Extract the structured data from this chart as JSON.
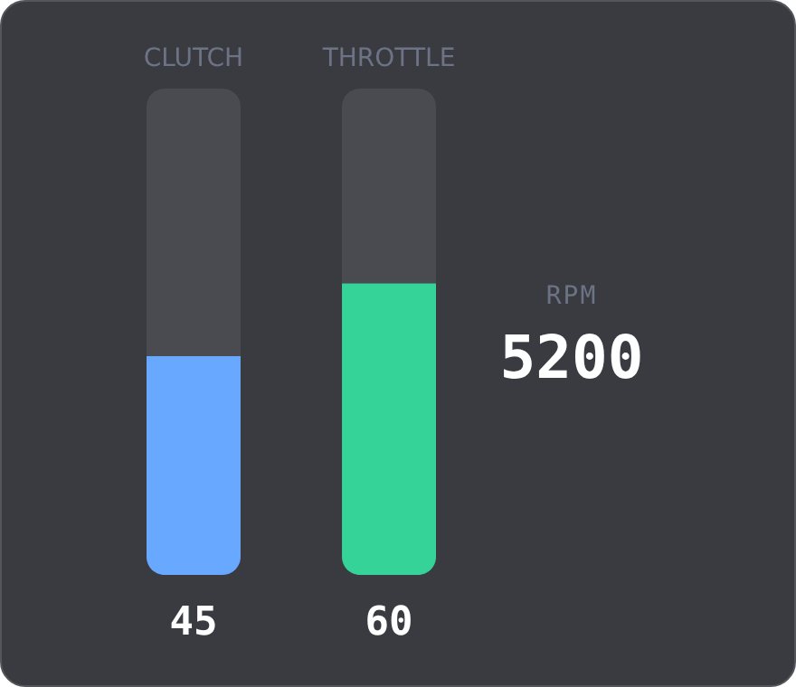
{
  "chart_data": [
    {
      "type": "bar",
      "categories": [
        "CLUTCH",
        "THROTTLE"
      ],
      "values": [
        45,
        60
      ],
      "colors": [
        "#69a8ff",
        "#36d399"
      ],
      "ylim": [
        0,
        100
      ],
      "data_labels": true
    },
    {
      "type": "other",
      "title": "RPM",
      "annotations": [
        "5200"
      ]
    }
  ]
}
